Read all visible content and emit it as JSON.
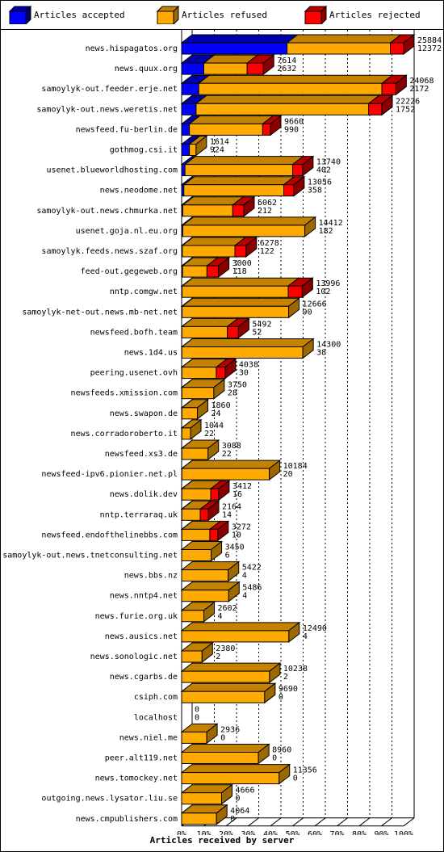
{
  "legend": {
    "accepted": "Articles accepted",
    "refused": "Articles refused",
    "rejected": "Articles rejected"
  },
  "colors": {
    "accepted": "#0000ff",
    "refused": "#ffaa00",
    "rejected": "#ff0000"
  },
  "caption": "Articles received by server",
  "chart_data": {
    "type": "bar",
    "orientation": "horizontal",
    "stacked": true,
    "xlabel": "Articles received by server",
    "x_ticks": [
      "0%",
      "10%",
      "20%",
      "30%",
      "40%",
      "50%",
      "60%",
      "70%",
      "80%",
      "90%",
      "100%"
    ],
    "xlim": [
      0,
      100
    ],
    "grid": true,
    "legend_position": "top",
    "series": [
      {
        "name": "Articles accepted",
        "key": "accepted"
      },
      {
        "name": "Articles refused",
        "key": "refused"
      },
      {
        "name": "Articles rejected",
        "key": "rejected"
      }
    ],
    "servers": [
      {
        "name": "news.hispagatos.org",
        "total": "25884",
        "rejected_label": "12372",
        "accepted": 47.5,
        "refused": 46.5,
        "rejected": 6.0
      },
      {
        "name": "news.quux.org",
        "total": "7614",
        "rejected_label": "2632",
        "accepted": 10.0,
        "refused": 19.5,
        "rejected": 7.3
      },
      {
        "name": "samoylyk-out.feeder.erje.net",
        "total": "24068",
        "rejected_label": "2172",
        "accepted": 7.7,
        "refused": 82.5,
        "rejected": 6.3
      },
      {
        "name": "samoylyk-out.news.weretis.net",
        "total": "22226",
        "rejected_label": "1752",
        "accepted": 6.5,
        "refused": 77.7,
        "rejected": 6.0
      },
      {
        "name": "newsfeed.fu-berlin.de",
        "total": "9660",
        "rejected_label": "990",
        "accepted": 3.5,
        "refused": 33.0,
        "rejected": 3.5
      },
      {
        "name": "gothmog.csi.it",
        "total": "1614",
        "rejected_label": "924",
        "accepted": 3.5,
        "refused": 3.0,
        "rejected": 0.0
      },
      {
        "name": "usenet.blueworldhosting.com",
        "total": "13740",
        "rejected_label": "402",
        "accepted": 1.5,
        "refused": 48.5,
        "rejected": 4.5
      },
      {
        "name": "news.neodome.net",
        "total": "13056",
        "rejected_label": "358",
        "accepted": 1.0,
        "refused": 45.0,
        "rejected": 4.5
      },
      {
        "name": "samoylyk-out.news.chmurka.net",
        "total": "6062",
        "rejected_label": "212",
        "accepted": 0.5,
        "refused": 22.5,
        "rejected": 5.0
      },
      {
        "name": "usenet.goja.nl.eu.org",
        "total": "14412",
        "rejected_label": "182",
        "accepted": 0.5,
        "refused": 55.0,
        "rejected": 0.0
      },
      {
        "name": "samoylyk.feeds.news.szaf.org",
        "total": "6278",
        "rejected_label": "122",
        "accepted": 0.3,
        "refused": 23.7,
        "rejected": 5.0
      },
      {
        "name": "feed-out.gegeweb.org",
        "total": "3000",
        "rejected_label": "118",
        "accepted": 0.4,
        "refused": 11.0,
        "rejected": 5.2
      },
      {
        "name": "nntp.comgw.net",
        "total": "13996",
        "rejected_label": "102",
        "accepted": 0.2,
        "refused": 47.8,
        "rejected": 6.3
      },
      {
        "name": "samoylyk-net-out.news.mb-net.net",
        "total": "12666",
        "rejected_label": "90",
        "accepted": 0.2,
        "refused": 48.0,
        "rejected": 0.0
      },
      {
        "name": "newsfeed.bofh.team",
        "total": "5492",
        "rejected_label": "52",
        "accepted": 0.1,
        "refused": 20.5,
        "rejected": 5.0
      },
      {
        "name": "news.1d4.us",
        "total": "14300",
        "rejected_label": "38",
        "accepted": 0.1,
        "refused": 54.5,
        "rejected": 0.0
      },
      {
        "name": "peering.usenet.ovh",
        "total": "4038",
        "rejected_label": "30",
        "accepted": 0.1,
        "refused": 15.5,
        "rejected": 4.0
      },
      {
        "name": "newsfeeds.xmission.com",
        "total": "3750",
        "rejected_label": "28",
        "accepted": 0.1,
        "refused": 14.4,
        "rejected": 0.0
      },
      {
        "name": "news.swapon.de",
        "total": "1860",
        "rejected_label": "24",
        "accepted": 0.1,
        "refused": 7.0,
        "rejected": 0.0
      },
      {
        "name": "news.corradoroberto.it",
        "total": "1044",
        "rejected_label": "22",
        "accepted": 0.1,
        "refused": 3.9,
        "rejected": 0.0
      },
      {
        "name": "newsfeed.xs3.de",
        "total": "3088",
        "rejected_label": "22",
        "accepted": 0.1,
        "refused": 11.8,
        "rejected": 0.0
      },
      {
        "name": "newsfeed-ipv6.pionier.net.pl",
        "total": "10184",
        "rejected_label": "20",
        "accepted": 0.1,
        "refused": 39.4,
        "rejected": 0.0
      },
      {
        "name": "news.dolik.dev",
        "total": "3412",
        "rejected_label": "16",
        "accepted": 0.1,
        "refused": 13.0,
        "rejected": 3.6
      },
      {
        "name": "nntp.terraraq.uk",
        "total": "2164",
        "rejected_label": "14",
        "accepted": 0.1,
        "refused": 8.3,
        "rejected": 3.6
      },
      {
        "name": "newsfeed.endofthelinebbs.com",
        "total": "3272",
        "rejected_label": "10",
        "accepted": 0.1,
        "refused": 12.6,
        "rejected": 3.6
      },
      {
        "name": "samoylyk-out.news.tnetconsulting.net",
        "total": "3450",
        "rejected_label": "6",
        "accepted": 0.0,
        "refused": 13.3,
        "rejected": 0.0
      },
      {
        "name": "news.bbs.nz",
        "total": "5422",
        "rejected_label": "4",
        "accepted": 0.0,
        "refused": 21.0,
        "rejected": 0.0
      },
      {
        "name": "news.nntp4.net",
        "total": "5486",
        "rejected_label": "4",
        "accepted": 0.0,
        "refused": 21.2,
        "rejected": 0.0
      },
      {
        "name": "news.furie.org.uk",
        "total": "2602",
        "rejected_label": "4",
        "accepted": 0.0,
        "refused": 10.0,
        "rejected": 0.0
      },
      {
        "name": "news.ausics.net",
        "total": "12490",
        "rejected_label": "4",
        "accepted": 0.0,
        "refused": 48.3,
        "rejected": 0.0
      },
      {
        "name": "news.sonologic.net",
        "total": "2380",
        "rejected_label": "2",
        "accepted": 0.0,
        "refused": 9.2,
        "rejected": 0.0
      },
      {
        "name": "news.cgarbs.de",
        "total": "10238",
        "rejected_label": "2",
        "accepted": 0.0,
        "refused": 39.6,
        "rejected": 0.0
      },
      {
        "name": "csiph.com",
        "total": "9690",
        "rejected_label": "0",
        "accepted": 0.0,
        "refused": 37.4,
        "rejected": 0.0
      },
      {
        "name": "localhost",
        "total": "0",
        "rejected_label": "0",
        "accepted": 0.0,
        "refused": 0.0,
        "rejected": 0.0
      },
      {
        "name": "news.niel.me",
        "total": "2936",
        "rejected_label": "0",
        "accepted": 0.0,
        "refused": 11.3,
        "rejected": 0.0
      },
      {
        "name": "peer.alt119.net",
        "total": "8960",
        "rejected_label": "0",
        "accepted": 0.0,
        "refused": 34.6,
        "rejected": 0.0
      },
      {
        "name": "news.tomockey.net",
        "total": "11356",
        "rejected_label": "0",
        "accepted": 0.0,
        "refused": 43.9,
        "rejected": 0.0
      },
      {
        "name": "outgoing.news.lysator.liu.se",
        "total": "4666",
        "rejected_label": "0",
        "accepted": 0.0,
        "refused": 18.0,
        "rejected": 0.0
      },
      {
        "name": "news.cmpublishers.com",
        "total": "4064",
        "rejected_label": "0",
        "accepted": 0.0,
        "refused": 15.7,
        "rejected": 0.0
      }
    ]
  }
}
